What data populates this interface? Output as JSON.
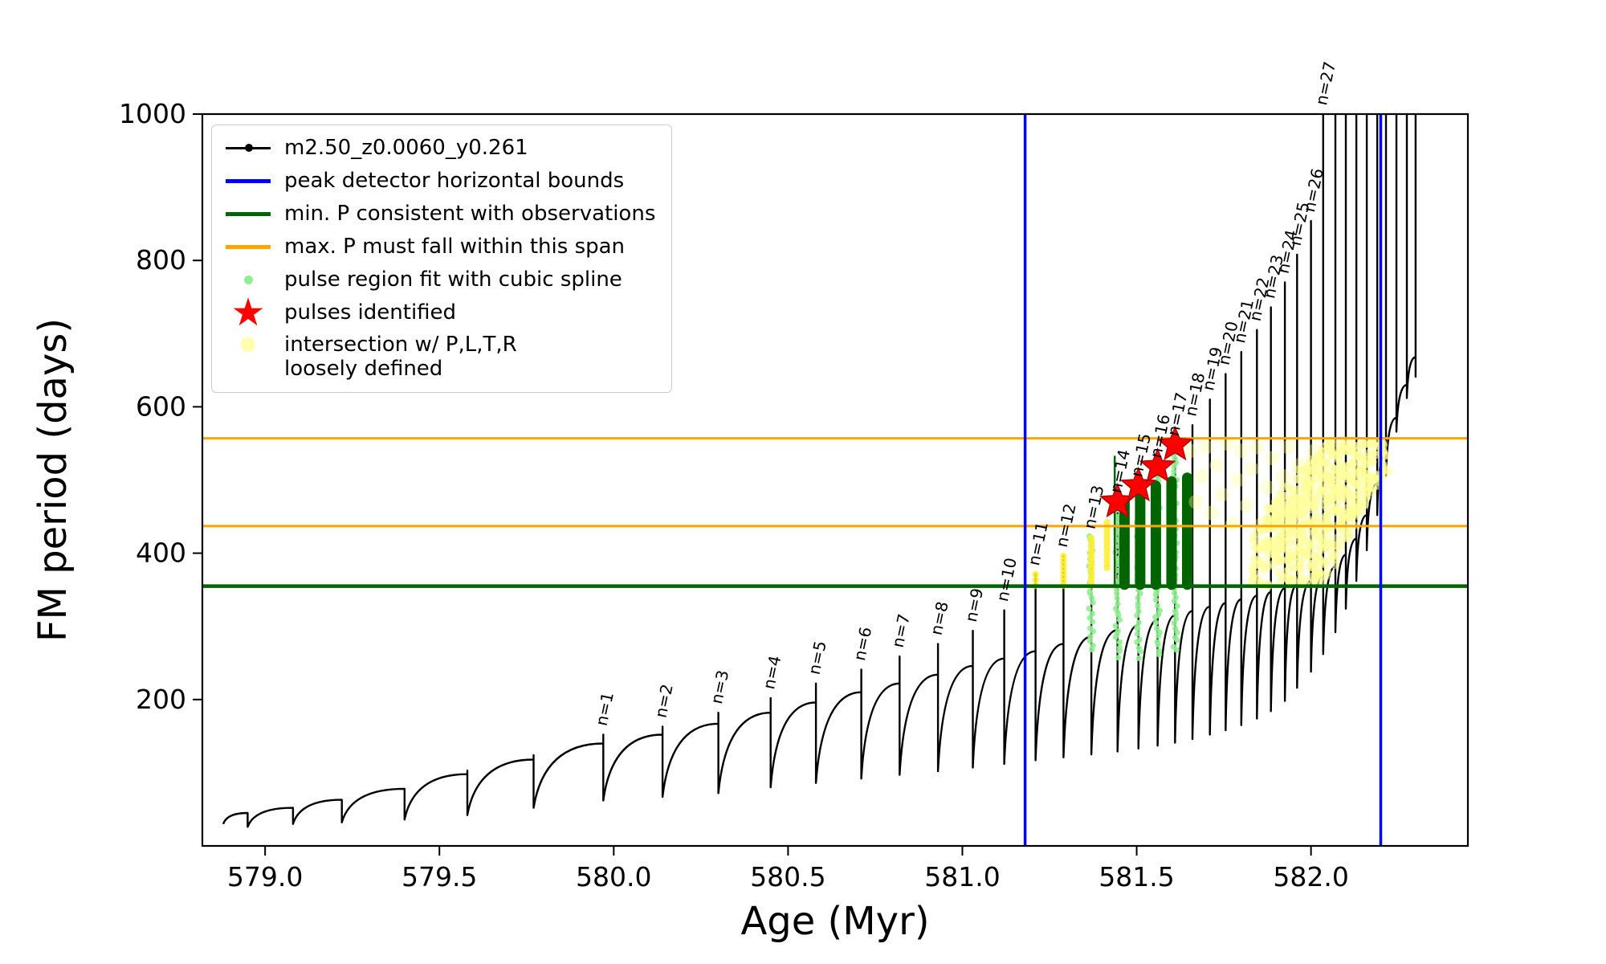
{
  "figure": {
    "background": "#ffffff"
  },
  "chart_data": {
    "type": "line",
    "title": "",
    "xlabel": "Age (Myr)",
    "ylabel": "FM period (days)",
    "xlim": [
      578.82,
      582.45
    ],
    "ylim": [
      0,
      1000
    ],
    "x_ticks": [
      579.0,
      579.5,
      580.0,
      580.5,
      581.0,
      581.5,
      582.0
    ],
    "y_ticks": [
      200,
      400,
      600,
      800,
      1000
    ],
    "grid": false,
    "legend": {
      "position": "upper left",
      "entries": [
        {
          "label": "m2.50_z0.0060_y0.261",
          "marker": "line-dot",
          "color": "#000000"
        },
        {
          "label": "peak detector horizontal bounds",
          "marker": "line",
          "color": "#0000ff"
        },
        {
          "label": "min. P consistent with observations",
          "marker": "line",
          "color": "#006400"
        },
        {
          "label": "max. P must fall within this span",
          "marker": "line",
          "color": "#ffa500"
        },
        {
          "label": "pulse region fit with cubic spline",
          "marker": "dot",
          "color": "#90ee90"
        },
        {
          "label": "pulses identified",
          "marker": "star",
          "color": "#ff0000"
        },
        {
          "label": "intersection w/ P,L,T,R",
          "label2": "loosely defined",
          "marker": "big-dot",
          "color": "#ffff99"
        }
      ]
    },
    "peak_detector_bounds": {
      "color": "#0000ff",
      "x": [
        581.18,
        582.2
      ]
    },
    "min_P_line": {
      "color": "#006400",
      "y": 355
    },
    "max_P_span": {
      "color": "#ffa500",
      "y": [
        437,
        557
      ]
    },
    "series": {
      "name": "m2.50_z0.0060_y0.261",
      "color": "#000000",
      "start": [
        578.88,
        30
      ],
      "pulses": [
        [
          578.95,
          45,
          45,
          26,
          null
        ],
        [
          579.08,
          52,
          52,
          30,
          null
        ],
        [
          579.22,
          63,
          63,
          32,
          null
        ],
        [
          579.4,
          78,
          78,
          36,
          null
        ],
        [
          579.58,
          98,
          103,
          42,
          null
        ],
        [
          579.77,
          118,
          124,
          52,
          null
        ],
        [
          579.97,
          140,
          152,
          62,
          "n=1"
        ],
        [
          580.14,
          152,
          163,
          67,
          "n=2"
        ],
        [
          580.3,
          167,
          182,
          72,
          "n=3"
        ],
        [
          580.45,
          182,
          202,
          80,
          "n=4"
        ],
        [
          580.58,
          196,
          222,
          86,
          "n=5"
        ],
        [
          580.71,
          210,
          241,
          92,
          "n=6"
        ],
        [
          580.82,
          222,
          259,
          97,
          "n=7"
        ],
        [
          580.93,
          234,
          276,
          102,
          "n=8"
        ],
        [
          581.03,
          246,
          294,
          107,
          "n=9"
        ],
        [
          581.12,
          256,
          322,
          112,
          "n=10"
        ],
        [
          581.21,
          266,
          371,
          117,
          "n=11"
        ],
        [
          581.29,
          276,
          396,
          121,
          "n=12"
        ],
        [
          581.37,
          286,
          421,
          125,
          "n=13"
        ],
        [
          581.445,
          295,
          470,
          129,
          "n=14"
        ],
        [
          581.505,
          302,
          492,
          133,
          "n=15"
        ],
        [
          581.56,
          309,
          518,
          137,
          "n=16"
        ],
        [
          581.61,
          315,
          548,
          141,
          "n=17"
        ],
        [
          581.66,
          321,
          575,
          146,
          "n=18"
        ],
        [
          581.71,
          327,
          610,
          152,
          "n=19"
        ],
        [
          581.755,
          332,
          645,
          158,
          "n=20"
        ],
        [
          581.8,
          337,
          675,
          165,
          "n=21"
        ],
        [
          581.845,
          342,
          705,
          174,
          "n=22"
        ],
        [
          581.885,
          347,
          736,
          184,
          "n=23"
        ],
        [
          581.925,
          352,
          770,
          198,
          "n=24"
        ],
        [
          581.96,
          357,
          808,
          216,
          "n=25"
        ],
        [
          582.0,
          362,
          854,
          238,
          "n=26"
        ],
        [
          582.035,
          370,
          1000,
          262,
          "n=27"
        ],
        [
          582.07,
          382,
          1000,
          292,
          null
        ],
        [
          582.1,
          398,
          1000,
          324,
          null
        ],
        [
          582.13,
          420,
          1000,
          362,
          null
        ],
        [
          582.16,
          452,
          1000,
          404,
          null
        ],
        [
          582.19,
          495,
          1000,
          452,
          null
        ],
        [
          582.215,
          540,
          1000,
          506,
          null
        ],
        [
          582.245,
          585,
          1000,
          566,
          null
        ],
        [
          582.275,
          630,
          1000,
          612,
          null
        ],
        [
          582.3,
          668,
          1000,
          640,
          null
        ]
      ]
    },
    "annotations": {
      "pulse_labels_rotation_deg": -78
    },
    "spline_fit_dots": {
      "color": "#90ee90",
      "strips": [
        [
          581.37,
          268,
          424
        ],
        [
          581.445,
          258,
          470
        ],
        [
          581.505,
          258,
          492
        ],
        [
          581.56,
          262,
          518
        ],
        [
          581.61,
          268,
          548
        ]
      ]
    },
    "pulse_bars": {
      "color": "#006400",
      "bars": [
        [
          581.465,
          357,
          472
        ],
        [
          581.51,
          357,
          484
        ],
        [
          581.555,
          357,
          492
        ],
        [
          581.6,
          357,
          498
        ],
        [
          581.645,
          357,
          503
        ]
      ],
      "thin_line": [
        581.437,
        357,
        533
      ]
    },
    "pulses_identified": {
      "color": "#ff0000",
      "points": [
        [
          581.445,
          470
        ],
        [
          581.505,
          492
        ],
        [
          581.56,
          518
        ],
        [
          581.61,
          548
        ]
      ]
    },
    "intersection_dots": {
      "color": "#ffff99",
      "spike_highlights": [
        [
          581.21,
          356,
          371
        ],
        [
          581.29,
          356,
          396
        ],
        [
          581.37,
          356,
          421
        ],
        [
          581.415,
          380,
          442
        ]
      ],
      "sparse": [
        [
          581.655,
          540
        ],
        [
          581.67,
          470
        ],
        [
          581.685,
          505
        ],
        [
          581.7,
          545
        ],
        [
          581.715,
          455
        ],
        [
          581.73,
          520
        ],
        [
          581.745,
          480
        ],
        [
          581.76,
          550
        ],
        [
          581.775,
          440
        ],
        [
          581.79,
          500
        ],
        [
          581.8,
          540
        ],
        [
          581.815,
          465
        ],
        [
          581.83,
          515
        ],
        [
          581.845,
          545
        ],
        [
          581.86,
          440
        ],
        [
          581.875,
          490
        ],
        [
          581.89,
          530
        ],
        [
          581.905,
          455
        ],
        [
          581.92,
          505
        ],
        [
          581.935,
          545
        ],
        [
          581.95,
          470
        ],
        [
          581.965,
          520
        ],
        [
          581.98,
          435
        ],
        [
          581.995,
          495
        ],
        [
          582.01,
          540
        ]
      ],
      "dense_strips": [
        [
          581.84,
          355,
          425
        ],
        [
          581.855,
          355,
          438
        ],
        [
          581.87,
          355,
          450
        ],
        [
          581.885,
          355,
          462
        ],
        [
          581.9,
          355,
          473
        ],
        [
          581.915,
          355,
          483
        ],
        [
          581.93,
          355,
          492
        ],
        [
          581.945,
          355,
          501
        ],
        [
          581.96,
          355,
          510
        ],
        [
          581.975,
          355,
          518
        ],
        [
          581.99,
          355,
          526
        ],
        [
          582.005,
          355,
          533
        ],
        [
          582.02,
          358,
          540
        ],
        [
          582.035,
          365,
          546
        ],
        [
          582.05,
          373,
          551
        ],
        [
          582.065,
          383,
          554
        ],
        [
          582.08,
          395,
          556
        ],
        [
          582.095,
          408,
          557
        ],
        [
          582.11,
          422,
          557
        ],
        [
          582.125,
          436,
          557
        ],
        [
          582.14,
          450,
          556
        ],
        [
          582.155,
          462,
          555
        ],
        [
          582.17,
          474,
          554
        ],
        [
          582.185,
          486,
          553
        ],
        [
          582.2,
          497,
          552
        ],
        [
          582.215,
          508,
          550
        ]
      ]
    }
  }
}
